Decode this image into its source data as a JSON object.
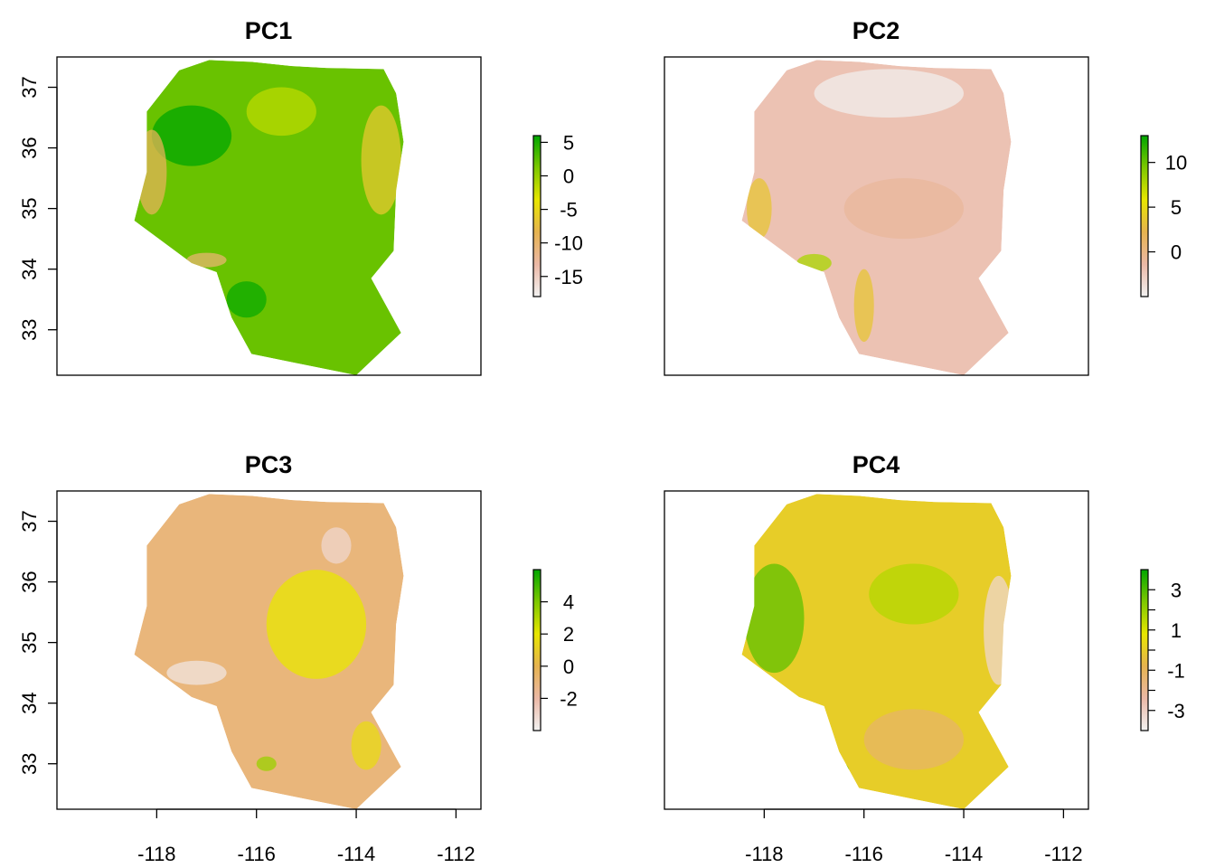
{
  "chart_data": [
    {
      "type": "heatmap",
      "title": "PC1",
      "xlabel": "",
      "ylabel": "",
      "xlim": [
        -120,
        -111.5
      ],
      "ylim": [
        32.25,
        37.5
      ],
      "x_ticks": [],
      "x_tick_labels": [],
      "y_ticks": [
        33,
        34,
        35,
        36,
        37
      ],
      "y_tick_labels": [
        "33",
        "34",
        "35",
        "36",
        "37"
      ],
      "legend": {
        "min": -18,
        "max": 6,
        "ticks": [
          5,
          0,
          -5,
          -10,
          -15
        ],
        "tick_labels": [
          "5",
          "0",
          "-5",
          "-10",
          "-15"
        ]
      },
      "colorscale": [
        "#f2f2f2",
        "#ebb8a6",
        "#e6b350",
        "#e8e600",
        "#7ec800",
        "#00a600"
      ],
      "dominant_value": 2
    },
    {
      "type": "heatmap",
      "title": "PC2",
      "xlabel": "",
      "ylabel": "",
      "xlim": [
        -120,
        -111.5
      ],
      "ylim": [
        32.25,
        37.5
      ],
      "x_ticks": [],
      "x_tick_labels": [],
      "y_ticks": [],
      "y_tick_labels": [],
      "legend": {
        "min": -5,
        "max": 13,
        "ticks": [
          10,
          5,
          0
        ],
        "tick_labels": [
          "10",
          "5",
          "0"
        ]
      },
      "colorscale": [
        "#f2f2f2",
        "#ebb8a6",
        "#e6b350",
        "#e8e600",
        "#7ec800",
        "#00a600"
      ],
      "dominant_value": -2
    },
    {
      "type": "heatmap",
      "title": "PC3",
      "xlabel": "",
      "ylabel": "",
      "xlim": [
        -120,
        -111.5
      ],
      "ylim": [
        32.25,
        37.5
      ],
      "x_ticks": [
        -118,
        -116,
        -114,
        -112
      ],
      "x_tick_labels": [
        "-118",
        "-116",
        "-114",
        "-112"
      ],
      "y_ticks": [
        33,
        34,
        35,
        36,
        37
      ],
      "y_tick_labels": [
        "33",
        "34",
        "35",
        "36",
        "37"
      ],
      "legend": {
        "min": -4,
        "max": 6,
        "ticks": [
          4,
          2,
          0,
          -2
        ],
        "tick_labels": [
          "4",
          "2",
          "0",
          "-2"
        ]
      },
      "colorscale": [
        "#f2f2f2",
        "#ebb8a6",
        "#e6b350",
        "#e8e600",
        "#7ec800",
        "#00a600"
      ],
      "dominant_value": -1
    },
    {
      "type": "heatmap",
      "title": "PC4",
      "xlabel": "",
      "ylabel": "",
      "xlim": [
        -120,
        -111.5
      ],
      "ylim": [
        32.25,
        37.5
      ],
      "x_ticks": [
        -118,
        -116,
        -114,
        -112
      ],
      "x_tick_labels": [
        "-118",
        "-116",
        "-114",
        "-112"
      ],
      "y_ticks": [],
      "y_tick_labels": [],
      "legend": {
        "min": -4,
        "max": 4,
        "ticks": [
          3,
          1,
          -1,
          -3
        ],
        "tick_labels": [
          "3",
          "1",
          "-1",
          "-3"
        ],
        "minor_ticks": [
          2,
          0,
          -2
        ]
      },
      "colorscale": [
        "#f2f2f2",
        "#ebb8a6",
        "#e6b350",
        "#e8e600",
        "#7ec800",
        "#00a600"
      ],
      "dominant_value": 0
    }
  ]
}
